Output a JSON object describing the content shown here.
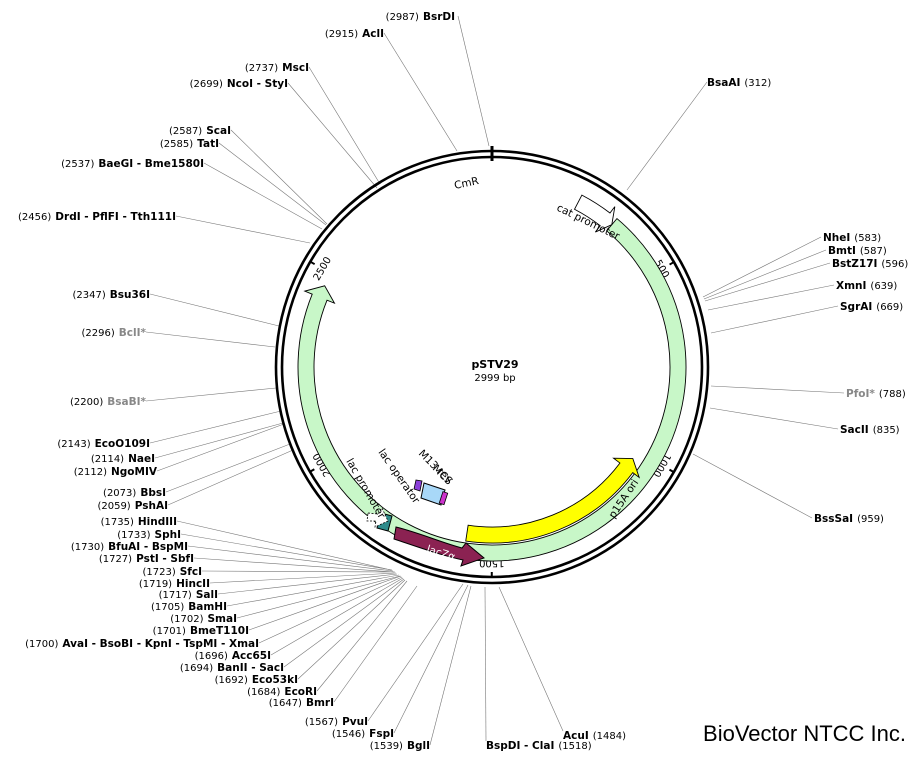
{
  "plasmid": {
    "name": "pSTV29",
    "size_label": "2999 bp",
    "total_bp": 2999
  },
  "brand": "BioVector NTCC Inc.",
  "ticks": [
    {
      "bp": 500,
      "label": "500"
    },
    {
      "bp": 1000,
      "label": "1000"
    },
    {
      "bp": 1500,
      "label": "1500"
    },
    {
      "bp": 2000,
      "label": "2000"
    },
    {
      "bp": 2500,
      "label": "2500"
    }
  ],
  "features": [
    {
      "name": "CmR",
      "label": "CmR",
      "start": 334,
      "end": 2465,
      "dir": "ccw",
      "color": "#c8f7c8",
      "kind": "arrow"
    },
    {
      "name": "cat-promoter",
      "label": "cat promoter",
      "start": 230,
      "end": 334,
      "dir": "ccw",
      "color": "#ffffff",
      "kind": "arrow"
    },
    {
      "name": "p15A-ori",
      "label": "p15A ori",
      "start": 1025,
      "end": 1571,
      "dir": "ccw",
      "color": "#ffff00",
      "kind": "arrow"
    }
  ],
  "inner_features": [
    {
      "name": "lacZa",
      "label": "lacZα",
      "color": "#8b2252"
    },
    {
      "name": "lac-promoter",
      "label": "lac promoter"
    },
    {
      "name": "lac-operator",
      "label": "lac operator"
    },
    {
      "name": "mcs",
      "label": "MCS"
    },
    {
      "name": "m13-rev",
      "label": "M13 rev"
    }
  ],
  "sites": [
    {
      "name": "BsrDI",
      "pos": "(2987)",
      "gray": false,
      "side": "left"
    },
    {
      "name": "AclI",
      "pos": "(2915)",
      "gray": false,
      "side": "left"
    },
    {
      "name": "MscI",
      "pos": "(2737)",
      "gray": false,
      "side": "left"
    },
    {
      "name": "NcoI - StyI",
      "pos": "(2699)",
      "gray": false,
      "side": "left"
    },
    {
      "name": "ScaI",
      "pos": "(2587)",
      "gray": false,
      "side": "left"
    },
    {
      "name": "TatI",
      "pos": "(2585)",
      "gray": false,
      "side": "left"
    },
    {
      "name": "BaeGI - Bme1580I",
      "pos": "(2537)",
      "gray": false,
      "side": "left"
    },
    {
      "name": "DrdI - PflFI - Tth111I",
      "pos": "(2456)",
      "gray": false,
      "side": "left"
    },
    {
      "name": "Bsu36I",
      "pos": "(2347)",
      "gray": false,
      "side": "left"
    },
    {
      "name": "BclI*",
      "pos": "(2296)",
      "gray": true,
      "side": "left"
    },
    {
      "name": "BsaBI*",
      "pos": "(2200)",
      "gray": true,
      "side": "left"
    },
    {
      "name": "EcoO109I",
      "pos": "(2143)",
      "gray": false,
      "side": "left"
    },
    {
      "name": "NaeI",
      "pos": "(2114)",
      "gray": false,
      "side": "left"
    },
    {
      "name": "NgoMIV",
      "pos": "(2112)",
      "gray": false,
      "side": "left"
    },
    {
      "name": "BbsI",
      "pos": "(2073)",
      "gray": false,
      "side": "left"
    },
    {
      "name": "PshAI",
      "pos": "(2059)",
      "gray": false,
      "side": "left"
    },
    {
      "name": "HindIII",
      "pos": "(1735)",
      "gray": false,
      "side": "left"
    },
    {
      "name": "SphI",
      "pos": "(1733)",
      "gray": false,
      "side": "left"
    },
    {
      "name": "BfuAI - BspMI",
      "pos": "(1730)",
      "gray": false,
      "side": "left"
    },
    {
      "name": "PstI - SbfI",
      "pos": "(1727)",
      "gray": false,
      "side": "left"
    },
    {
      "name": "SfcI",
      "pos": "(1723)",
      "gray": false,
      "side": "left"
    },
    {
      "name": "HincII",
      "pos": "(1719)",
      "gray": false,
      "side": "left"
    },
    {
      "name": "SalI",
      "pos": "(1717)",
      "gray": false,
      "side": "left"
    },
    {
      "name": "BamHI",
      "pos": "(1705)",
      "gray": false,
      "side": "left"
    },
    {
      "name": "SmaI",
      "pos": "(1702)",
      "gray": false,
      "side": "left"
    },
    {
      "name": "BmeT110I",
      "pos": "(1701)",
      "gray": false,
      "side": "left"
    },
    {
      "name": "AvaI - BsoBI - KpnI - TspMI - XmaI",
      "pos": "(1700)",
      "gray": false,
      "side": "left"
    },
    {
      "name": "Acc65I",
      "pos": "(1696)",
      "gray": false,
      "side": "left"
    },
    {
      "name": "BanII - SacI",
      "pos": "(1694)",
      "gray": false,
      "side": "left"
    },
    {
      "name": "Eco53kI",
      "pos": "(1692)",
      "gray": false,
      "side": "left"
    },
    {
      "name": "EcoRI",
      "pos": "(1684)",
      "gray": false,
      "side": "left"
    },
    {
      "name": "BmrI",
      "pos": "(1647)",
      "gray": false,
      "side": "left"
    },
    {
      "name": "PvuI",
      "pos": "(1567)",
      "gray": false,
      "side": "left"
    },
    {
      "name": "FspI",
      "pos": "(1546)",
      "gray": false,
      "side": "left"
    },
    {
      "name": "BglI",
      "pos": "(1539)",
      "gray": false,
      "side": "left"
    },
    {
      "name": "BspDI - ClaI",
      "pos": "(1518)",
      "gray": false,
      "side": "right"
    },
    {
      "name": "AcuI",
      "pos": "(1484)",
      "gray": false,
      "side": "right"
    },
    {
      "name": "BsaAI",
      "pos": "(312)",
      "gray": false,
      "side": "right"
    },
    {
      "name": "NheI",
      "pos": "(583)",
      "gray": false,
      "side": "right"
    },
    {
      "name": "BmtI",
      "pos": "(587)",
      "gray": false,
      "side": "right"
    },
    {
      "name": "BstZ17I",
      "pos": "(596)",
      "gray": false,
      "side": "right"
    },
    {
      "name": "XmnI",
      "pos": "(639)",
      "gray": false,
      "side": "right"
    },
    {
      "name": "SgrAI",
      "pos": "(669)",
      "gray": false,
      "side": "right"
    },
    {
      "name": "PfoI*",
      "pos": "(788)",
      "gray": true,
      "side": "right"
    },
    {
      "name": "SacII",
      "pos": "(835)",
      "gray": false,
      "side": "right"
    },
    {
      "name": "BssSaI",
      "pos": "(959)",
      "gray": false,
      "side": "right"
    }
  ]
}
